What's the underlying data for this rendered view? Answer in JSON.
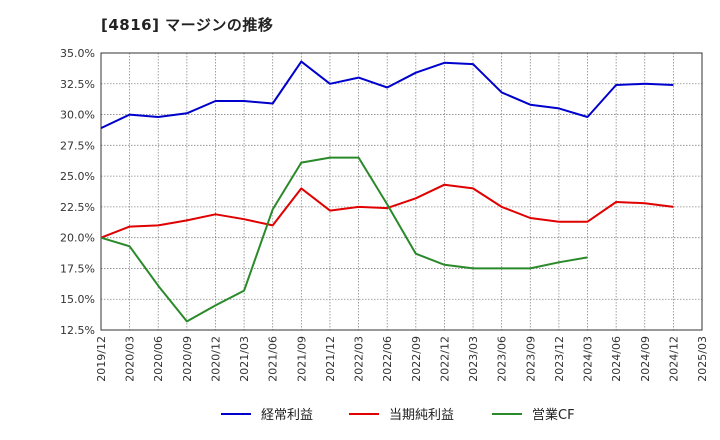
{
  "chart_title": "[4816]  マージンの推移",
  "chart_data": {
    "type": "line",
    "title": "[4816]  マージンの推移",
    "xlabel": "",
    "ylabel": "",
    "x": [
      "2019/12",
      "2020/03",
      "2020/06",
      "2020/09",
      "2020/12",
      "2021/03",
      "2021/06",
      "2021/09",
      "2021/12",
      "2022/03",
      "2022/06",
      "2022/09",
      "2022/12",
      "2023/03",
      "2023/06",
      "2023/09",
      "2023/12",
      "2024/03",
      "2024/06",
      "2024/09",
      "2024/12",
      "2025/03"
    ],
    "y_ticks": [
      "12.5%",
      "15.0%",
      "17.5%",
      "20.0%",
      "22.5%",
      "25.0%",
      "27.5%",
      "30.0%",
      "32.5%",
      "35.0%"
    ],
    "ylim": [
      12.5,
      35.0
    ],
    "y_unit": "%",
    "grid": true,
    "legend_position": "bottom",
    "series": [
      {
        "name": "経常利益",
        "color": "#0000cc",
        "values": [
          28.9,
          30.0,
          29.8,
          30.1,
          31.1,
          31.1,
          30.9,
          34.3,
          32.5,
          33.0,
          32.2,
          33.4,
          34.2,
          34.1,
          31.8,
          30.8,
          30.5,
          29.8,
          32.4,
          32.5,
          32.4,
          null
        ]
      },
      {
        "name": "当期純利益",
        "color": "#e00000",
        "values": [
          20.0,
          20.9,
          21.0,
          21.4,
          21.9,
          21.5,
          21.0,
          24.0,
          22.2,
          22.5,
          22.4,
          23.2,
          24.3,
          24.0,
          22.5,
          21.6,
          21.3,
          21.3,
          22.9,
          22.8,
          22.5,
          null
        ]
      },
      {
        "name": "営業CF",
        "color": "#2a8a2a",
        "values": [
          20.0,
          19.3,
          16.1,
          13.2,
          14.5,
          15.7,
          22.3,
          26.1,
          26.5,
          26.5,
          22.7,
          18.7,
          17.8,
          17.5,
          17.5,
          17.5,
          18.0,
          18.4,
          null,
          null,
          null,
          null
        ]
      }
    ]
  }
}
